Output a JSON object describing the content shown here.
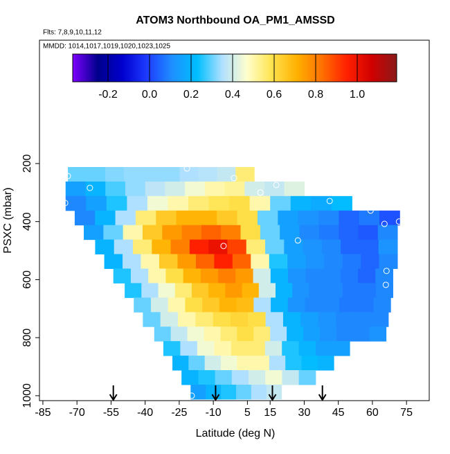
{
  "chart_data": {
    "type": "heatmap",
    "title": "ATOM3 Northbound OA_PM1_AMSSD",
    "subtitle": "Flts: 7,8,9,10,11,12",
    "annotation": "MMDD: 1014,1017,1019,1020,1023,1025",
    "x_label": "Latitude (deg N)",
    "y_label": "PSXC (mbar)",
    "xlim": [
      -86.5,
      85
    ],
    "xticks": [
      -85,
      -70,
      -55,
      -40,
      -25,
      -10,
      5,
      15,
      30,
      45,
      60,
      75
    ],
    "ylim": [
      1017,
      -225
    ],
    "yticks": [
      200,
      400,
      600,
      800,
      1000
    ],
    "colorbar": {
      "lim": [
        -0.37,
        1.19
      ],
      "ticks": [
        -0.2,
        {
          "value": 0,
          "label": "0.0"
        },
        0.2,
        0.4,
        0.6,
        0.8,
        {
          "value": 1,
          "label": "1.0"
        }
      ],
      "colors": [
        "#7f00ff",
        "#00008b",
        "#0000cd",
        "#1e3cff",
        "#1e90ff",
        "#00bfff",
        "#b0e0ff",
        "#ffffcc",
        "#ffe34d",
        "#ffb000",
        "#ff7000",
        "#ff2000",
        "#d00000",
        "#8b1a1a"
      ]
    },
    "rows": [
      {
        "pressure": 237,
        "lat_range": [
          -74,
          8
        ],
        "values": [
          0.3,
          0.3,
          0.32,
          0.33,
          0.33,
          0.33,
          0.35,
          0.36,
          0.38,
          0.55
        ]
      },
      {
        "pressure": 287,
        "lat_range": [
          -75,
          30
        ],
        "values": [
          0.15,
          0.2,
          0.28,
          0.33,
          0.37,
          0.4,
          0.45,
          0.5,
          0.52,
          0.4,
          0.38,
          0.42
        ]
      },
      {
        "pressure": 337,
        "lat_range": [
          -75,
          51
        ],
        "values": [
          0.1,
          0.15,
          0.25,
          0.35,
          0.45,
          0.5,
          0.55,
          0.58,
          0.6,
          0.5,
          0.3,
          0.2,
          0.18,
          0.22
        ]
      },
      {
        "pressure": 387,
        "lat_range": [
          -71,
          72
        ],
        "values": [
          0.1,
          0.2,
          0.35,
          0.55,
          0.65,
          0.7,
          0.7,
          0.65,
          0.6,
          0.3,
          0.15,
          0.12,
          0.1,
          0.05,
          0.08,
          0.02
        ]
      },
      {
        "pressure": 437,
        "lat_range": [
          -67,
          71
        ],
        "values": [
          0.15,
          0.3,
          0.5,
          0.65,
          0.75,
          0.8,
          0.85,
          0.8,
          0.6,
          0.3,
          0.15,
          0.1,
          0.08,
          0.05,
          0.03,
          0.1
        ]
      },
      {
        "pressure": 487,
        "lat_range": [
          -62,
          71
        ],
        "values": [
          0.2,
          0.35,
          0.55,
          0.7,
          0.8,
          0.95,
          1.0,
          0.9,
          0.55,
          0.3,
          0.15,
          0.12,
          0.1,
          0.05,
          0.05,
          0.12
        ]
      },
      {
        "pressure": 537,
        "lat_range": [
          -58,
          71
        ],
        "values": [
          0.2,
          0.35,
          0.5,
          0.65,
          0.75,
          0.85,
          0.95,
          0.85,
          0.5,
          0.25,
          0.15,
          0.12,
          0.1,
          0.08,
          0.05,
          0.1
        ]
      },
      {
        "pressure": 587,
        "lat_range": [
          -54,
          69
        ],
        "values": [
          0.25,
          0.35,
          0.5,
          0.6,
          0.7,
          0.75,
          0.8,
          0.75,
          0.4,
          0.2,
          0.12,
          0.1,
          0.1,
          0.08,
          0.05,
          0.1
        ]
      },
      {
        "pressure": 637,
        "lat_range": [
          -49,
          69
        ],
        "values": [
          0.25,
          0.35,
          0.45,
          0.55,
          0.65,
          0.7,
          0.75,
          0.7,
          0.4,
          0.2,
          0.12,
          0.1,
          0.1,
          0.08,
          0.08,
          0.1
        ]
      },
      {
        "pressure": 687,
        "lat_range": [
          -45,
          68
        ],
        "values": [
          0.3,
          0.4,
          0.5,
          0.6,
          0.65,
          0.7,
          0.68,
          0.35,
          0.2,
          0.12,
          0.1,
          0.1,
          0.08,
          0.08,
          0.1
        ]
      },
      {
        "pressure": 737,
        "lat_range": [
          -41,
          67
        ],
        "values": [
          0.3,
          0.4,
          0.5,
          0.55,
          0.6,
          0.62,
          0.6,
          0.35,
          0.2,
          0.15,
          0.12,
          0.1,
          0.1,
          0.1
        ]
      },
      {
        "pressure": 787,
        "lat_range": [
          -36,
          66
        ],
        "values": [
          0.3,
          0.38,
          0.45,
          0.5,
          0.55,
          0.6,
          0.55,
          0.35,
          0.2,
          0.15,
          0.12,
          0.1,
          0.1,
          0.12
        ]
      },
      {
        "pressure": 837,
        "lat_range": [
          -32,
          50
        ],
        "values": [
          0.25,
          0.35,
          0.45,
          0.5,
          0.55,
          0.55,
          0.4,
          0.25,
          0.2,
          0.15,
          0.15
        ]
      },
      {
        "pressure": 887,
        "lat_range": [
          -28,
          43
        ],
        "values": [
          0.2,
          0.3,
          0.4,
          0.45,
          0.5,
          0.5,
          0.35,
          0.25,
          0.22,
          0.2
        ]
      },
      {
        "pressure": 937,
        "lat_range": [
          -24,
          35
        ],
        "values": [
          0.2,
          0.25,
          0.3,
          0.35,
          0.4,
          0.45,
          0.38,
          0.3
        ]
      },
      {
        "pressure": 987,
        "lat_range": [
          -20,
          20
        ],
        "values": [
          0.15,
          0.2,
          0.25,
          0.3,
          0.35,
          0.38
        ]
      }
    ],
    "points": {
      "x": [
        -74.0,
        -21.6,
        -0.9,
        -64.3,
        10.7,
        17.7,
        -75.2,
        41.2,
        59.2,
        65.3,
        71.7,
        -5.5,
        27.2,
        66.2,
        65.9,
        65.3,
        -19.5
      ],
      "y": [
        243,
        217,
        250,
        284,
        300,
        274,
        336,
        329,
        362,
        408,
        400,
        484,
        465,
        570,
        618,
        856,
        1000
      ]
    },
    "arrows_x": [
      -54,
      -9,
      16,
      38
    ]
  }
}
